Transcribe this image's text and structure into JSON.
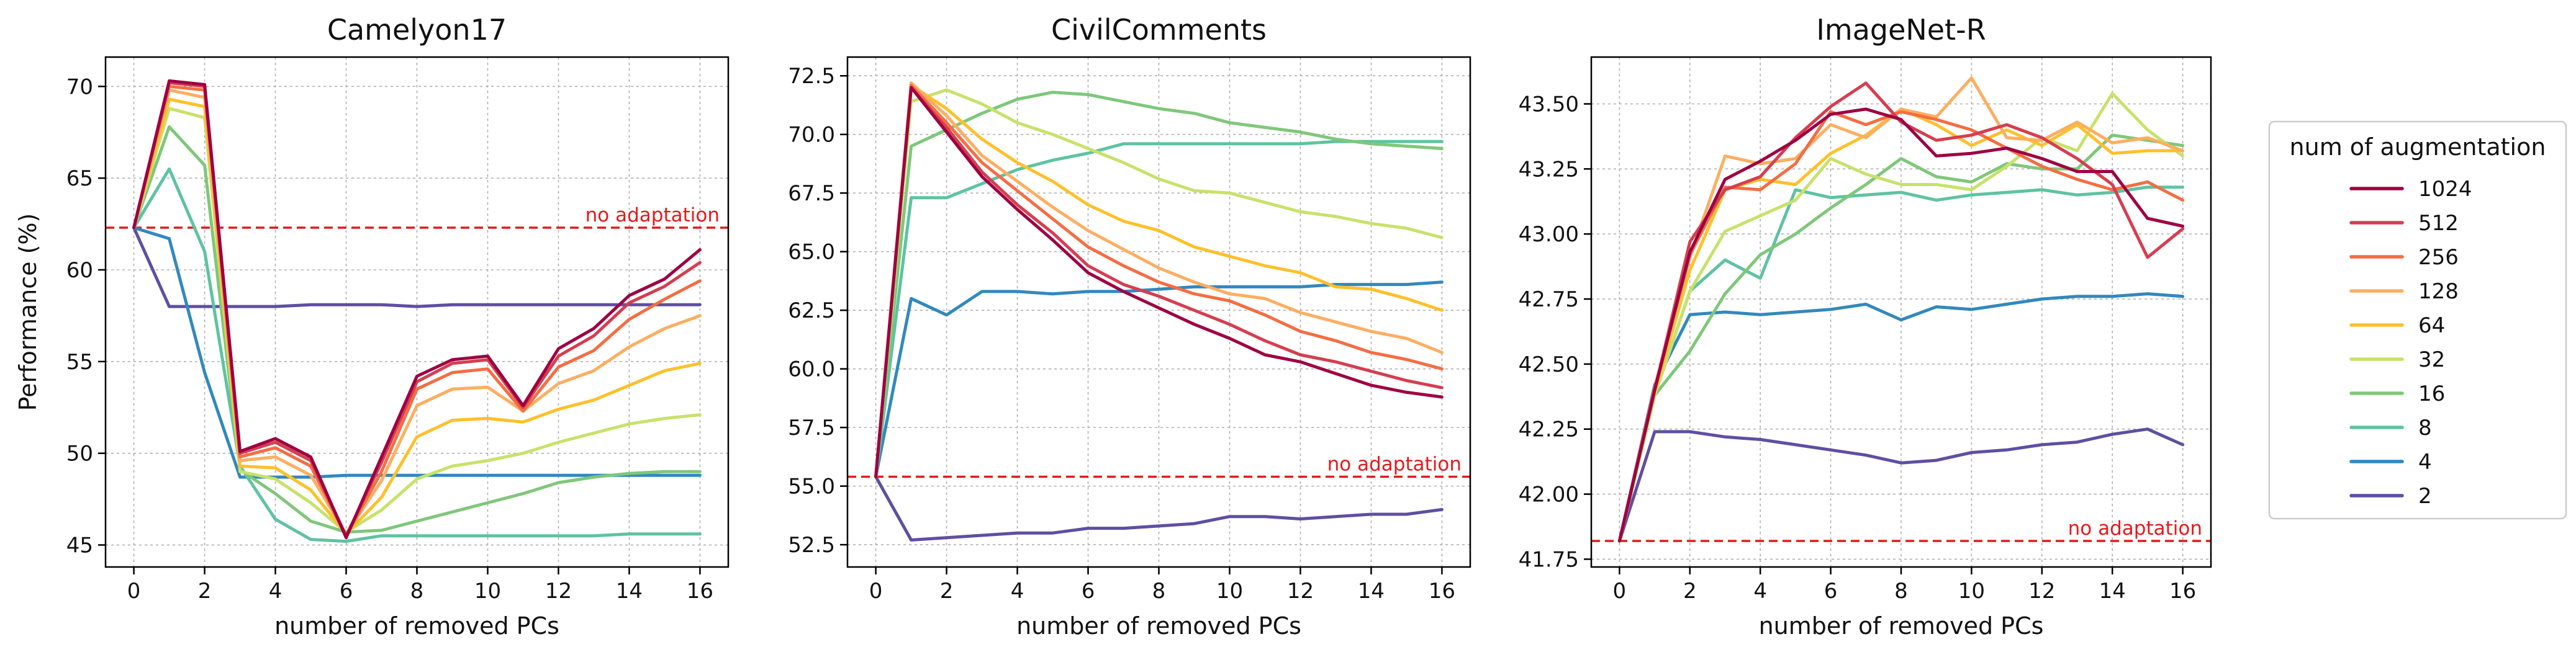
{
  "chart_data": [
    {
      "type": "line",
      "title": "Camelyon17",
      "xlabel": "number of removed PCs",
      "ylabel": "Performance (%)",
      "x": [
        0,
        1,
        2,
        3,
        4,
        5,
        6,
        7,
        8,
        9,
        10,
        11,
        12,
        13,
        14,
        15,
        16
      ],
      "xticks": [
        0,
        2,
        4,
        6,
        8,
        10,
        12,
        14,
        16
      ],
      "xlim": [
        -0.8,
        16.8
      ],
      "ylim": [
        43.8,
        71.6
      ],
      "yticks": [
        45,
        50,
        55,
        60,
        65,
        70
      ],
      "ytick_labels": [
        "45",
        "50",
        "55",
        "60",
        "65",
        "70"
      ],
      "grid": true,
      "reference": {
        "label": "no adaptation",
        "value": 62.3
      },
      "series": [
        {
          "name": "1024",
          "values": [
            62.3,
            70.3,
            70.1,
            50.1,
            50.8,
            49.8,
            45.4,
            49.8,
            54.2,
            55.1,
            55.3,
            52.6,
            55.7,
            56.8,
            58.6,
            59.5,
            61.1
          ]
        },
        {
          "name": "512",
          "values": [
            62.3,
            70.2,
            70.0,
            50.0,
            50.6,
            49.6,
            45.5,
            49.5,
            53.9,
            54.9,
            55.1,
            52.5,
            55.3,
            56.4,
            58.2,
            59.1,
            60.4
          ]
        },
        {
          "name": "256",
          "values": [
            62.3,
            70.0,
            69.8,
            49.8,
            50.3,
            49.3,
            45.5,
            49.0,
            53.5,
            54.4,
            54.6,
            52.3,
            54.7,
            55.6,
            57.3,
            58.4,
            59.4
          ]
        },
        {
          "name": "128",
          "values": [
            62.3,
            69.8,
            69.4,
            49.6,
            49.8,
            48.8,
            45.6,
            48.5,
            52.6,
            53.5,
            53.6,
            52.3,
            53.8,
            54.5,
            55.8,
            56.8,
            57.5
          ]
        },
        {
          "name": "64",
          "values": [
            62.3,
            69.3,
            68.9,
            49.3,
            49.2,
            48.0,
            45.6,
            47.6,
            50.9,
            51.8,
            51.9,
            51.7,
            52.4,
            52.9,
            53.7,
            54.5,
            54.9
          ]
        },
        {
          "name": "32",
          "values": [
            62.3,
            68.8,
            68.3,
            49.0,
            48.6,
            47.3,
            45.7,
            46.9,
            48.6,
            49.3,
            49.6,
            50.0,
            50.6,
            51.1,
            51.6,
            51.9,
            52.1
          ]
        },
        {
          "name": "16",
          "values": [
            62.3,
            67.8,
            65.7,
            49.1,
            47.8,
            46.3,
            45.7,
            45.8,
            46.3,
            46.8,
            47.3,
            47.8,
            48.4,
            48.7,
            48.9,
            49.0,
            49.0
          ]
        },
        {
          "name": "8",
          "values": [
            62.3,
            65.5,
            61.0,
            49.3,
            46.4,
            45.3,
            45.2,
            45.5,
            45.5,
            45.5,
            45.5,
            45.5,
            45.5,
            45.5,
            45.6,
            45.6,
            45.6
          ]
        },
        {
          "name": "4",
          "values": [
            62.3,
            61.7,
            54.4,
            48.7,
            48.7,
            48.7,
            48.8,
            48.8,
            48.8,
            48.8,
            48.8,
            48.8,
            48.8,
            48.8,
            48.8,
            48.8,
            48.8
          ]
        },
        {
          "name": "2",
          "values": [
            62.3,
            58.0,
            58.0,
            58.0,
            58.0,
            58.1,
            58.1,
            58.1,
            58.0,
            58.1,
            58.1,
            58.1,
            58.1,
            58.1,
            58.1,
            58.1,
            58.1
          ]
        }
      ]
    },
    {
      "type": "line",
      "title": "CivilComments",
      "xlabel": "number of removed PCs",
      "ylabel": "",
      "x": [
        0,
        1,
        2,
        3,
        4,
        5,
        6,
        7,
        8,
        9,
        10,
        11,
        12,
        13,
        14,
        15,
        16
      ],
      "xticks": [
        0,
        2,
        4,
        6,
        8,
        10,
        12,
        14,
        16
      ],
      "xlim": [
        -0.8,
        16.8
      ],
      "ylim": [
        51.55,
        73.3
      ],
      "yticks": [
        52.5,
        55,
        57.5,
        60,
        62.5,
        65,
        67.5,
        70,
        72.5
      ],
      "ytick_labels": [
        "52.5",
        "55.0",
        "57.5",
        "60.0",
        "62.5",
        "65.0",
        "67.5",
        "70.0",
        "72.5"
      ],
      "grid": true,
      "reference": {
        "label": "no adaptation",
        "value": 55.4
      },
      "series": [
        {
          "name": "1024",
          "values": [
            55.4,
            72.0,
            70.1,
            68.2,
            66.8,
            65.5,
            64.1,
            63.3,
            62.6,
            61.9,
            61.3,
            60.6,
            60.3,
            59.8,
            59.3,
            59.0,
            58.8
          ]
        },
        {
          "name": "512",
          "values": [
            55.4,
            72.0,
            70.3,
            68.4,
            67.0,
            65.8,
            64.4,
            63.6,
            63.1,
            62.5,
            61.9,
            61.2,
            60.6,
            60.3,
            59.9,
            59.5,
            59.2
          ]
        },
        {
          "name": "256",
          "values": [
            55.4,
            72.1,
            70.5,
            68.8,
            67.6,
            66.4,
            65.2,
            64.4,
            63.7,
            63.2,
            62.9,
            62.3,
            61.6,
            61.2,
            60.7,
            60.4,
            60.0
          ]
        },
        {
          "name": "128",
          "values": [
            55.4,
            72.2,
            70.8,
            69.1,
            68.0,
            66.9,
            65.9,
            65.1,
            64.3,
            63.7,
            63.2,
            63.0,
            62.4,
            62.0,
            61.6,
            61.3,
            60.7
          ]
        },
        {
          "name": "64",
          "values": [
            55.4,
            72.1,
            71.1,
            69.8,
            68.8,
            68.0,
            67.0,
            66.3,
            65.9,
            65.2,
            64.8,
            64.4,
            64.1,
            63.5,
            63.4,
            63.0,
            62.5
          ]
        },
        {
          "name": "32",
          "values": [
            55.4,
            71.4,
            71.9,
            71.3,
            70.5,
            70.0,
            69.4,
            68.8,
            68.1,
            67.6,
            67.5,
            67.1,
            66.7,
            66.5,
            66.2,
            66.0,
            65.6
          ]
        },
        {
          "name": "16",
          "values": [
            55.4,
            69.5,
            70.2,
            70.9,
            71.5,
            71.8,
            71.7,
            71.4,
            71.1,
            70.9,
            70.5,
            70.3,
            70.1,
            69.8,
            69.6,
            69.5,
            69.4
          ]
        },
        {
          "name": "8",
          "values": [
            55.4,
            67.3,
            67.3,
            67.9,
            68.5,
            68.9,
            69.2,
            69.6,
            69.6,
            69.6,
            69.6,
            69.6,
            69.6,
            69.7,
            69.7,
            69.7,
            69.7
          ]
        },
        {
          "name": "4",
          "values": [
            55.4,
            63.0,
            62.3,
            63.3,
            63.3,
            63.2,
            63.3,
            63.3,
            63.4,
            63.5,
            63.5,
            63.5,
            63.5,
            63.6,
            63.6,
            63.6,
            63.7
          ]
        },
        {
          "name": "2",
          "values": [
            55.4,
            52.7,
            52.8,
            52.9,
            53.0,
            53.0,
            53.2,
            53.2,
            53.3,
            53.4,
            53.7,
            53.7,
            53.6,
            53.7,
            53.8,
            53.8,
            54.0
          ]
        }
      ]
    },
    {
      "type": "line",
      "title": "ImageNet-R",
      "xlabel": "number of removed PCs",
      "ylabel": "",
      "x": [
        0,
        1,
        2,
        3,
        4,
        5,
        6,
        7,
        8,
        9,
        10,
        11,
        12,
        13,
        14,
        15,
        16
      ],
      "xticks": [
        0,
        2,
        4,
        6,
        8,
        10,
        12,
        14,
        16
      ],
      "xlim": [
        -0.8,
        16.8
      ],
      "ylim": [
        41.72,
        43.68
      ],
      "yticks": [
        41.75,
        42.0,
        42.25,
        42.5,
        42.75,
        43.0,
        43.25,
        43.5
      ],
      "ytick_labels": [
        "41.75",
        "42.00",
        "42.25",
        "42.50",
        "42.75",
        "43.00",
        "43.25",
        "43.50"
      ],
      "grid": true,
      "reference": {
        "label": "no adaptation",
        "value": 41.82
      },
      "series": [
        {
          "name": "1024",
          "values": [
            41.82,
            42.4,
            42.93,
            43.21,
            43.28,
            43.36,
            43.46,
            43.48,
            43.44,
            43.3,
            43.31,
            43.33,
            43.29,
            43.24,
            43.24,
            43.06,
            43.03
          ]
        },
        {
          "name": "512",
          "values": [
            41.82,
            42.4,
            42.97,
            43.17,
            43.22,
            43.37,
            43.49,
            43.58,
            43.43,
            43.36,
            43.38,
            43.42,
            43.37,
            43.29,
            43.19,
            42.91,
            43.02
          ]
        },
        {
          "name": "256",
          "values": [
            41.82,
            42.41,
            42.92,
            43.18,
            43.17,
            43.27,
            43.47,
            43.42,
            43.47,
            43.44,
            43.4,
            43.33,
            43.26,
            43.21,
            43.17,
            43.2,
            43.13
          ]
        },
        {
          "name": "128",
          "values": [
            41.82,
            42.4,
            42.91,
            43.3,
            43.27,
            43.29,
            43.42,
            43.37,
            43.48,
            43.45,
            43.6,
            43.37,
            43.36,
            43.43,
            43.35,
            43.37,
            43.32
          ]
        },
        {
          "name": "64",
          "values": [
            41.82,
            42.39,
            42.86,
            43.17,
            43.21,
            43.19,
            43.31,
            43.38,
            43.48,
            43.42,
            43.34,
            43.4,
            43.34,
            43.42,
            43.31,
            43.32,
            43.32
          ]
        },
        {
          "name": "32",
          "values": [
            41.82,
            42.38,
            42.78,
            43.01,
            43.07,
            43.13,
            43.29,
            43.23,
            43.19,
            43.19,
            43.17,
            43.26,
            43.37,
            43.32,
            43.54,
            43.4,
            43.3
          ]
        },
        {
          "name": "16",
          "values": [
            41.82,
            42.38,
            42.55,
            42.77,
            42.92,
            43.0,
            43.1,
            43.19,
            43.29,
            43.22,
            43.2,
            43.27,
            43.25,
            43.25,
            43.38,
            43.36,
            43.34
          ]
        },
        {
          "name": "8",
          "values": [
            41.82,
            42.38,
            42.78,
            42.9,
            42.83,
            43.17,
            43.14,
            43.15,
            43.16,
            43.13,
            43.15,
            43.16,
            43.17,
            43.15,
            43.16,
            43.18,
            43.18
          ]
        },
        {
          "name": "4",
          "values": [
            41.82,
            42.42,
            42.69,
            42.7,
            42.69,
            42.7,
            42.71,
            42.73,
            42.67,
            42.72,
            42.71,
            42.73,
            42.75,
            42.76,
            42.76,
            42.77,
            42.76
          ]
        },
        {
          "name": "2",
          "values": [
            41.82,
            42.24,
            42.24,
            42.22,
            42.21,
            42.19,
            42.17,
            42.15,
            42.12,
            42.13,
            42.16,
            42.17,
            42.19,
            42.2,
            42.23,
            42.25,
            42.19
          ]
        }
      ]
    }
  ],
  "legend": {
    "title": "num of augmentation",
    "placement": "right",
    "entries": [
      {
        "label": "1024",
        "color": "#9e0142"
      },
      {
        "label": "512",
        "color": "#d53e4f"
      },
      {
        "label": "256",
        "color": "#f46d43"
      },
      {
        "label": "128",
        "color": "#fdae61"
      },
      {
        "label": "64",
        "color": "#fec02b"
      },
      {
        "label": "32",
        "color": "#c7e26a"
      },
      {
        "label": "16",
        "color": "#7fc77a"
      },
      {
        "label": "8",
        "color": "#5ec3a0"
      },
      {
        "label": "4",
        "color": "#3288bd"
      },
      {
        "label": "2",
        "color": "#5e4fa2"
      }
    ]
  },
  "reference_color": "#e41a1c"
}
